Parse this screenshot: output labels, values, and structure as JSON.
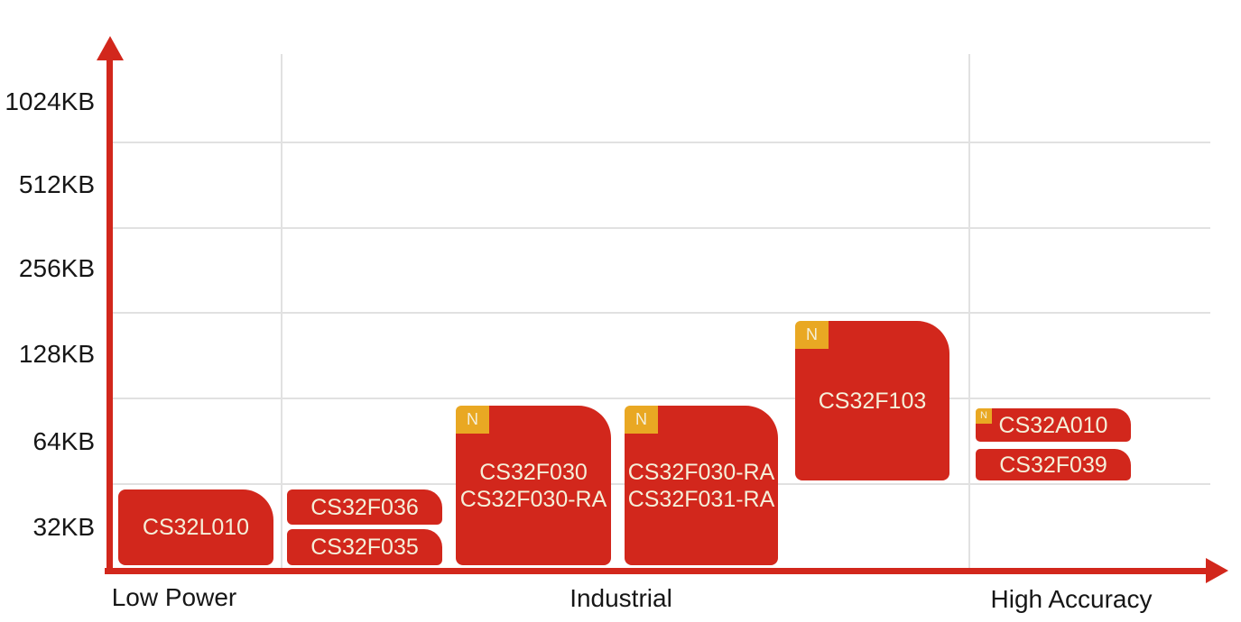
{
  "colors": {
    "bar_red": "#d2271c",
    "axis_red": "#d2271c",
    "badge_orange": "#e9a823",
    "bar_text_cream": "#f5efd9",
    "gridline_gray": "#e1e1e1",
    "label_text": "#161616"
  },
  "chart_data": {
    "type": "bar",
    "title": "",
    "xlabel": "",
    "ylabel": "",
    "y_scale": "log2-bands",
    "ylabel_ticks": [
      "1024KB",
      "512KB",
      "256KB",
      "128KB",
      "64KB",
      "32KB"
    ],
    "categories": [
      "Low Power",
      "Industrial",
      "High Accuracy"
    ],
    "grid": "on",
    "badge_label": "N",
    "products": [
      {
        "name": "CS32L010",
        "labels": [
          "CS32L010"
        ],
        "category": "Low Power",
        "new_badge": false,
        "flash_kb_est": [
          22,
          44
        ]
      },
      {
        "name": "CS32F036",
        "labels": [
          "CS32F036"
        ],
        "category": "Industrial",
        "new_badge": false,
        "flash_kb_est": [
          24,
          44
        ]
      },
      {
        "name": "CS32F035",
        "labels": [
          "CS32F035"
        ],
        "category": "Industrial",
        "new_badge": false,
        "flash_kb_est": [
          19,
          30
        ]
      },
      {
        "name": "CS32F030 / CS32F030-RA",
        "labels": [
          "CS32F030",
          "CS32F030-RA"
        ],
        "category": "Industrial",
        "new_badge": true,
        "flash_kb_est": [
          19,
          86
        ]
      },
      {
        "name": "CS32F030-RA / CS32F031-RA",
        "labels": [
          "CS32F030-RA",
          "CS32F031-RA"
        ],
        "category": "Industrial",
        "new_badge": true,
        "flash_kb_est": [
          19,
          86
        ]
      },
      {
        "name": "CS32F103",
        "labels": [
          "CS32F103"
        ],
        "category": "Industrial",
        "new_badge": true,
        "flash_kb_est": [
          46,
          170
        ]
      },
      {
        "name": "CS32A010",
        "labels": [
          "CS32A010"
        ],
        "category": "High Accuracy",
        "new_badge": true,
        "flash_kb_est": [
          62,
          84
        ]
      },
      {
        "name": "CS32F039",
        "labels": [
          "CS32F039"
        ],
        "category": "High Accuracy",
        "new_badge": false,
        "flash_kb_est": [
          45,
          59
        ]
      }
    ]
  }
}
